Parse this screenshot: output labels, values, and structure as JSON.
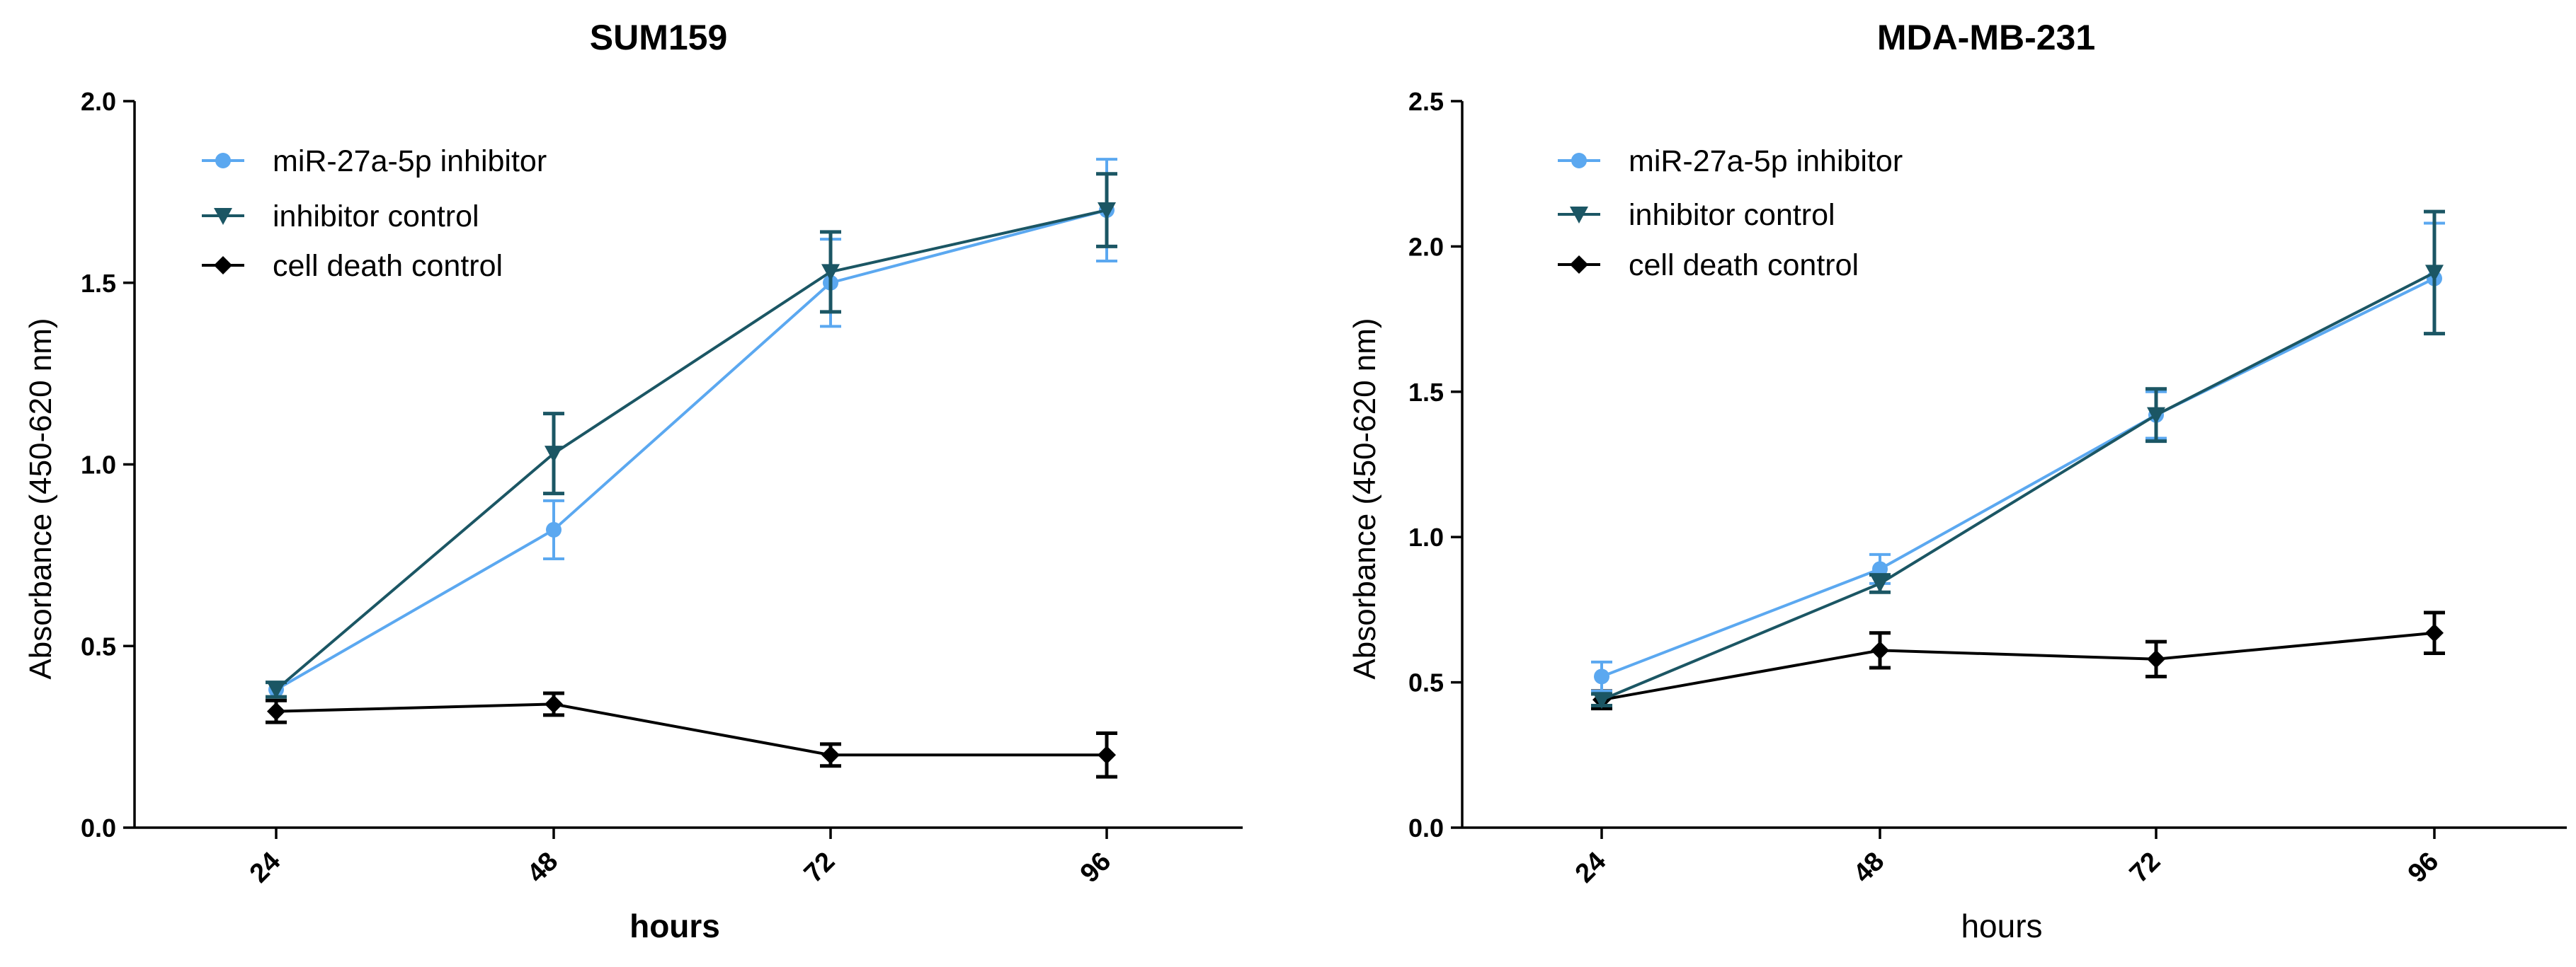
{
  "colors": {
    "inhibitor": "#5ba8f0",
    "control": "#1b5664",
    "death": "#000000"
  },
  "chart_data": [
    {
      "type": "line",
      "title": "SUM159",
      "xlabel": "hours",
      "ylabel": "Absorbance (450-620 nm)",
      "categories": [
        "24",
        "48",
        "72",
        "96"
      ],
      "ylim": [
        0,
        2.0
      ],
      "yticks": [
        "0.0",
        "0.5",
        "1.0",
        "1.5",
        "2.0"
      ],
      "ytick_values": [
        0,
        0.5,
        1.0,
        1.5,
        2.0
      ],
      "legend_position": "top-left",
      "series": [
        {
          "key": "inhibitor",
          "name": "miR-27a-5p inhibitor",
          "marker": "circle",
          "values": [
            0.38,
            0.82,
            1.5,
            1.7
          ],
          "errors": [
            0.02,
            0.08,
            0.12,
            0.14
          ]
        },
        {
          "key": "control",
          "name": "inhibitor control",
          "marker": "triangle-down",
          "values": [
            0.38,
            1.03,
            1.53,
            1.7
          ],
          "errors": [
            0.02,
            0.11,
            0.11,
            0.1
          ]
        },
        {
          "key": "death",
          "name": "cell death control",
          "marker": "diamond",
          "values": [
            0.32,
            0.34,
            0.2,
            0.2
          ],
          "errors": [
            0.03,
            0.03,
            0.03,
            0.06
          ]
        }
      ]
    },
    {
      "type": "line",
      "title": "MDA-MB-231",
      "xlabel": "hours",
      "ylabel": "Absorbance (450-620 nm)",
      "categories": [
        "24",
        "48",
        "72",
        "96"
      ],
      "ylim": [
        0,
        2.5
      ],
      "yticks": [
        "0.0",
        "0.5",
        "1.0",
        "1.5",
        "2.0",
        "2.5"
      ],
      "ytick_values": [
        0,
        0.5,
        1.0,
        1.5,
        2.0,
        2.5
      ],
      "legend_position": "top-left",
      "series": [
        {
          "key": "inhibitor",
          "name": "miR-27a-5p inhibitor",
          "marker": "circle",
          "values": [
            0.52,
            0.89,
            1.42,
            1.89
          ],
          "errors": [
            0.05,
            0.05,
            0.08,
            0.19
          ]
        },
        {
          "key": "control",
          "name": "inhibitor control",
          "marker": "triangle-down",
          "values": [
            0.44,
            0.84,
            1.42,
            1.91
          ],
          "errors": [
            0.02,
            0.03,
            0.09,
            0.21
          ]
        },
        {
          "key": "death",
          "name": "cell death control",
          "marker": "diamond",
          "values": [
            0.44,
            0.61,
            0.58,
            0.67
          ],
          "errors": [
            0.03,
            0.06,
            0.06,
            0.07
          ]
        }
      ]
    }
  ]
}
